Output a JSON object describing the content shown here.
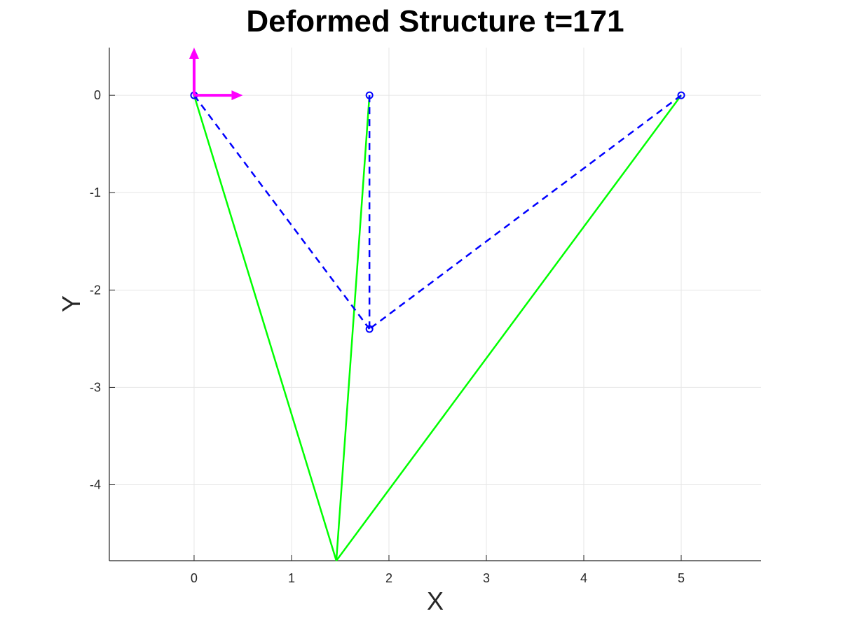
{
  "chart_data": {
    "type": "line",
    "title": "Deformed Structure t=171",
    "xlabel": "X",
    "ylabel": "Y",
    "xlim": [
      -0.87,
      5.82
    ],
    "ylim": [
      -4.78,
      0.49
    ],
    "xticks": [
      0,
      1,
      2,
      3,
      4,
      5
    ],
    "yticks": [
      0,
      -1,
      -2,
      -3,
      -4
    ],
    "xtick_labels": [
      "0",
      "1",
      "2",
      "3",
      "4",
      "5"
    ],
    "ytick_labels": [
      "0",
      "-1",
      "-2",
      "-3",
      "-4"
    ],
    "grid": true,
    "nodes": [
      {
        "x": 0,
        "y": 0
      },
      {
        "x": 1.8,
        "y": 0
      },
      {
        "x": 5,
        "y": 0
      },
      {
        "x": 1.8,
        "y": -2.4
      }
    ],
    "series": [
      {
        "style": "dashed",
        "color": "#0000ff",
        "segments": [
          [
            [
              0,
              0
            ],
            [
              1.8,
              -2.4
            ]
          ],
          [
            [
              1.8,
              0
            ],
            [
              1.8,
              -2.4
            ]
          ],
          [
            [
              5,
              0
            ],
            [
              1.8,
              -2.4
            ]
          ]
        ]
      },
      {
        "style": "solid",
        "color": "#00ff00",
        "segments": [
          [
            [
              0,
              0
            ],
            [
              1.46,
              -4.78
            ]
          ],
          [
            [
              1.8,
              0
            ],
            [
              1.46,
              -4.78
            ]
          ],
          [
            [
              5,
              0
            ],
            [
              1.46,
              -4.78
            ]
          ]
        ]
      }
    ],
    "arrows": [
      {
        "color": "#ff00ff",
        "from": [
          0,
          0
        ],
        "to": [
          0.5,
          0
        ]
      },
      {
        "color": "#ff00ff",
        "from": [
          0,
          0
        ],
        "to": [
          0,
          0.49
        ]
      }
    ]
  }
}
